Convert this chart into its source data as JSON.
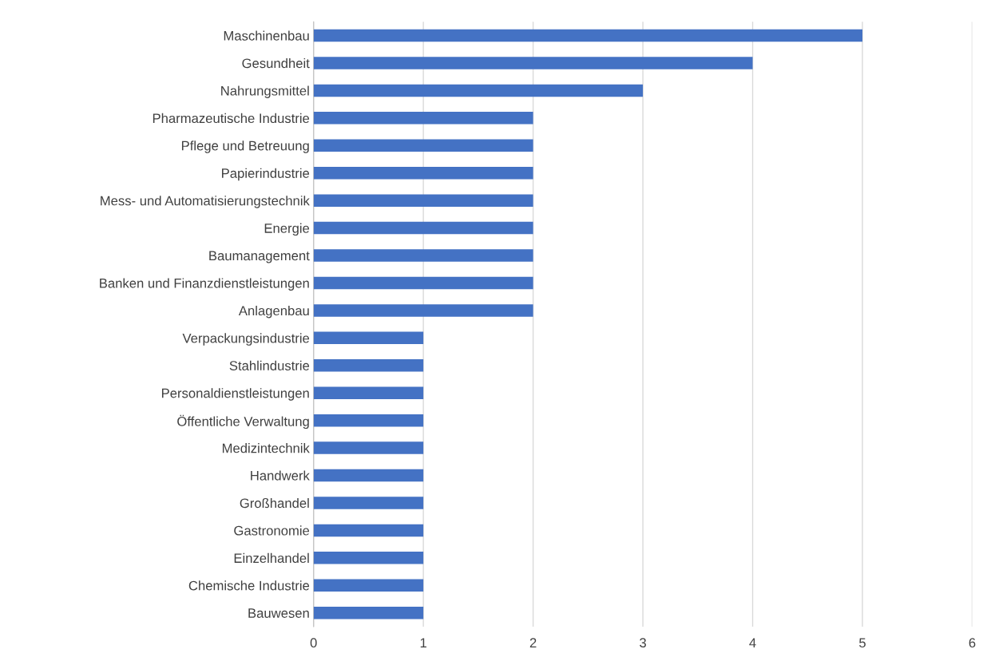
{
  "chart_data": {
    "type": "bar",
    "orientation": "horizontal",
    "categories": [
      "Maschinenbau",
      "Gesundheit",
      "Nahrungsmittel",
      "Pharmazeutische Industrie",
      "Pflege und Betreuung",
      "Papierindustrie",
      "Mess- und Automatisierungstechnik",
      "Energie",
      "Baumanagement",
      "Banken und Finanzdienstleistungen",
      "Anlagenbau",
      "Verpackungsindustrie",
      "Stahlindustrie",
      "Personaldienstleistungen",
      "Öffentliche Verwaltung",
      "Medizintechnik",
      "Handwerk",
      "Großhandel",
      "Gastronomie",
      "Einzelhandel",
      "Chemische Industrie",
      "Bauwesen"
    ],
    "values": [
      5,
      4,
      3,
      2,
      2,
      2,
      2,
      2,
      2,
      2,
      2,
      1,
      1,
      1,
      1,
      1,
      1,
      1,
      1,
      1,
      1,
      1
    ],
    "color": "#4472c4",
    "xlim": [
      0,
      6
    ],
    "xticks": [
      0,
      1,
      2,
      3,
      4,
      5,
      6
    ],
    "grid": "x"
  }
}
